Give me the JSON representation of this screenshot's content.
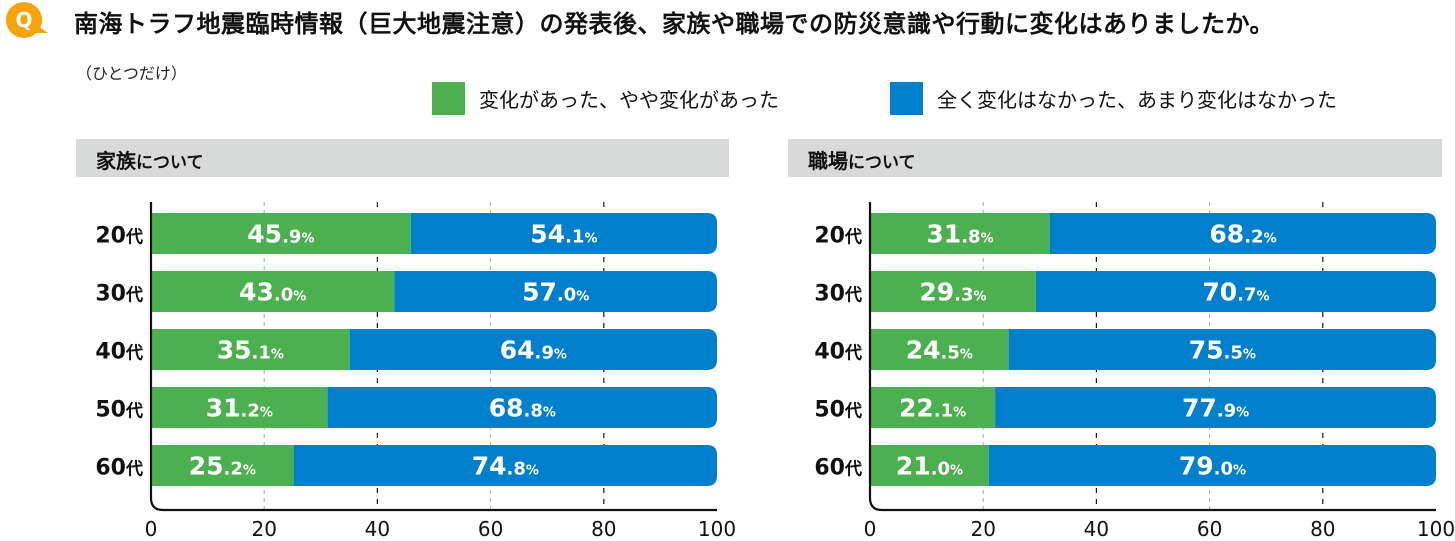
{
  "header": {
    "q_icon_letter": "Q",
    "title": "南海トラフ地震臨時情報（巨大地震注意）の発表後、家族や職場での防災意識や行動に変化はありましたか。",
    "subtitle": "（ひとつだけ）"
  },
  "colors": {
    "accent_orange": "#f4a30a",
    "changed": "#4caf50",
    "not_changed": "#0080cc",
    "panel_bg": "#d8d9d9"
  },
  "legend": [
    {
      "label": "変化があった、やや変化があった",
      "color": "#4caf50"
    },
    {
      "label": "全く変化はなかった、あまり変化はなかった",
      "color": "#0080cc"
    }
  ],
  "panels": [
    {
      "title_main": "家族",
      "title_suffix": "について"
    },
    {
      "title_main": "職場",
      "title_suffix": "について"
    }
  ],
  "chart_data": [
    {
      "type": "bar",
      "stacked": true,
      "orientation": "horizontal",
      "title": "家族について",
      "categories": [
        "20代",
        "30代",
        "40代",
        "50代",
        "60代"
      ],
      "series": [
        {
          "name": "変化があった、やや変化があった",
          "values": [
            45.9,
            43.0,
            35.1,
            31.2,
            25.2
          ],
          "labels": [
            "45.9",
            "43.0",
            "35.1",
            "31.2",
            "25.2"
          ]
        },
        {
          "name": "全く変化はなかった、あまり変化はなかった",
          "values": [
            54.1,
            57.0,
            64.9,
            68.8,
            74.8
          ],
          "labels": [
            "54.1",
            "57.0",
            "64.9",
            "68.8",
            "74.8"
          ]
        }
      ],
      "unit": "%",
      "xlim": [
        0,
        100
      ],
      "xticks": [
        "0",
        "20",
        "40",
        "60",
        "80",
        "100"
      ],
      "grid": true
    },
    {
      "type": "bar",
      "stacked": true,
      "orientation": "horizontal",
      "title": "職場について",
      "categories": [
        "20代",
        "30代",
        "40代",
        "50代",
        "60代"
      ],
      "series": [
        {
          "name": "変化があった、やや変化があった",
          "values": [
            31.8,
            29.3,
            24.5,
            22.1,
            21.0
          ],
          "labels": [
            "31.8",
            "29.3",
            "24.5",
            "22.1",
            "21.0"
          ]
        },
        {
          "name": "全く変化はなかった、あまり変化はなかった",
          "values": [
            68.2,
            70.7,
            75.5,
            77.9,
            79.0
          ],
          "labels": [
            "68.2",
            "70.7",
            "75.5",
            "77.9",
            "79.0"
          ]
        }
      ],
      "unit": "%",
      "xlim": [
        0,
        100
      ],
      "xticks": [
        "0",
        "20",
        "40",
        "60",
        "80",
        "100"
      ],
      "grid": true
    }
  ]
}
